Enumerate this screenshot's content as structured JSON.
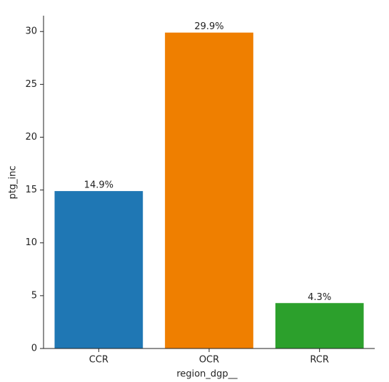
{
  "chart_data": {
    "type": "bar",
    "xlabel": "region_dgp__",
    "ylabel": "ptg_inc",
    "categories": [
      "CCR",
      "OCR",
      "RCR"
    ],
    "values": [
      14.9,
      29.9,
      4.3
    ],
    "value_labels": [
      "14.9%",
      "29.9%",
      "4.3%"
    ],
    "colors": [
      "#1f77b4",
      "#ef7f00",
      "#2ca02c"
    ],
    "ylim": [
      0,
      31.5
    ],
    "yticks": [
      0,
      5,
      10,
      15,
      20,
      25,
      30
    ]
  }
}
